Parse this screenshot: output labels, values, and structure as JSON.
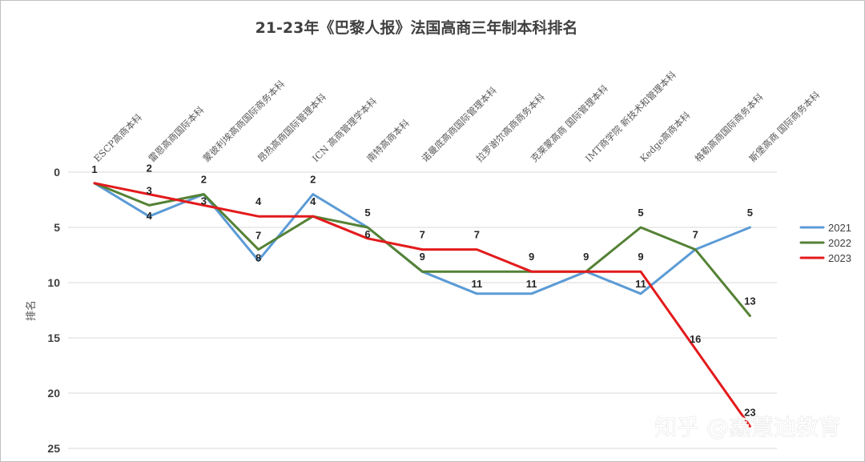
{
  "chart_data": {
    "type": "line",
    "title": "21-23年《巴黎人报》法国高商三年制本科排名",
    "ylabel": "排名",
    "xlabel": "",
    "ylim": [
      0,
      25
    ],
    "y_inverted": true,
    "yticks": [
      0,
      5,
      10,
      15,
      20,
      25
    ],
    "grid": true,
    "legend_position": "right",
    "categories": [
      "ESCP高商本科",
      "雷恩高商国际本科",
      "蒙彼利埃高商国际商务本科",
      "昂热高商国际管理本科",
      "ICN 高商管理学本科",
      "南特高商本科",
      "诺曼底高商国际管理本科",
      "拉罗谢尔高商商务本科",
      "克莱蒙高商 国际管理本科",
      "IMT商学院 新技术和管理本科",
      "Kedge高商本科",
      "格勒高商国际商务本科",
      "斯堡高商 国际商务本科"
    ],
    "series": [
      {
        "name": "2021",
        "color": "#5b9bd5",
        "values": [
          1,
          4,
          2,
          8,
          2,
          5,
          9,
          11,
          11,
          9,
          11,
          7,
          5
        ]
      },
      {
        "name": "2022",
        "color": "#548235",
        "values": [
          1,
          3,
          2,
          7,
          4,
          5,
          9,
          9,
          9,
          9,
          5,
          7,
          13
        ]
      },
      {
        "name": "2023",
        "color": "#e31a1c",
        "values": [
          1,
          2,
          3,
          4,
          4,
          6,
          7,
          7,
          9,
          9,
          9,
          16,
          23
        ]
      }
    ],
    "data_labels": [
      {
        "category_index": 0,
        "text": "1"
      },
      {
        "category_index": 1,
        "text": "2"
      },
      {
        "category_index": 1,
        "text": "3"
      },
      {
        "category_index": 1,
        "text": "4"
      },
      {
        "category_index": 2,
        "text": "2"
      },
      {
        "category_index": 2,
        "text": "3"
      },
      {
        "category_index": 3,
        "text": "4"
      },
      {
        "category_index": 3,
        "text": "7"
      },
      {
        "category_index": 3,
        "text": "8"
      },
      {
        "category_index": 4,
        "text": "2"
      },
      {
        "category_index": 4,
        "text": "4"
      },
      {
        "category_index": 5,
        "text": "5"
      },
      {
        "category_index": 5,
        "text": "6"
      },
      {
        "category_index": 6,
        "text": "7"
      },
      {
        "category_index": 6,
        "text": "9"
      },
      {
        "category_index": 7,
        "text": "7"
      },
      {
        "category_index": 7,
        "text": "11"
      },
      {
        "category_index": 8,
        "text": "9"
      },
      {
        "category_index": 8,
        "text": "11"
      },
      {
        "category_index": 9,
        "text": "9"
      },
      {
        "category_index": 10,
        "text": "5"
      },
      {
        "category_index": 10,
        "text": "9"
      },
      {
        "category_index": 10,
        "text": "11"
      },
      {
        "category_index": 11,
        "text": "7"
      },
      {
        "category_index": 11,
        "text": "16"
      },
      {
        "category_index": 12,
        "text": "5"
      },
      {
        "category_index": 12,
        "text": "13"
      },
      {
        "category_index": 12,
        "text": "23"
      }
    ]
  },
  "watermark": "知乎 @鑫慧迪教育"
}
